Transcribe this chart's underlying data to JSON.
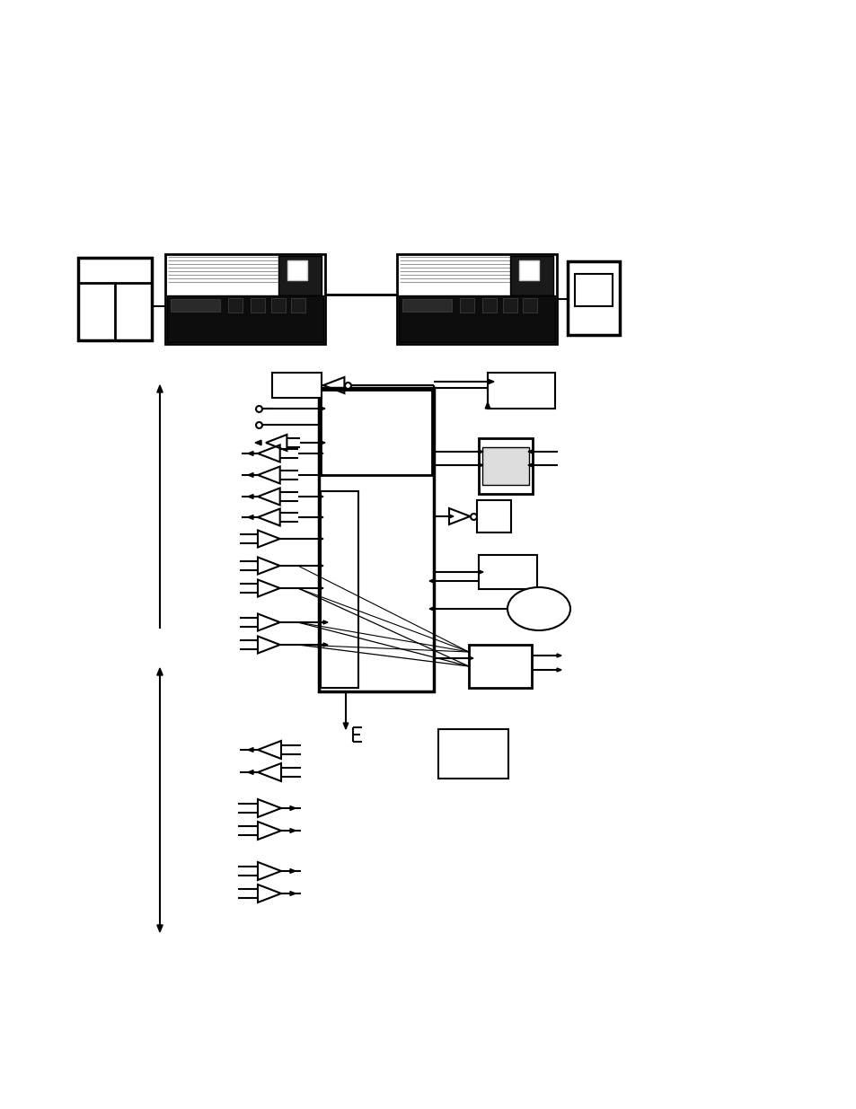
{
  "bg_color": "#ffffff",
  "fig_width": 9.54,
  "fig_height": 12.35,
  "dpi": 100
}
